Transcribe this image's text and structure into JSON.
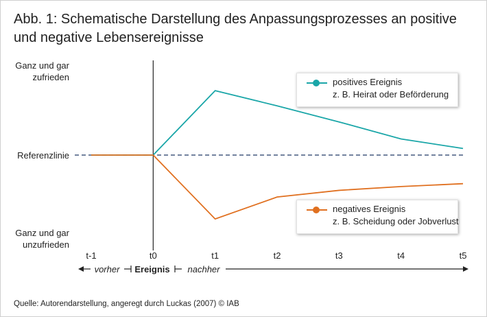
{
  "title": "Abb. 1: Schematische Darstellung des Anpassungsprozesses an positive und negative Lebensereignisse",
  "source": "Quelle: Autorendarstellung, angeregt durch Luckas (2007)  © IAB",
  "colors": {
    "positive": "#1aa6a8",
    "negative": "#e07020",
    "axis": "#222222",
    "reference": "#1f3864"
  },
  "chart_data": {
    "type": "line",
    "x": [
      "t-1",
      "t0",
      "t1",
      "t2",
      "t3",
      "t4",
      "t5"
    ],
    "ylim": [
      -1,
      1
    ],
    "y_labels": {
      "top_line1": "Ganz und gar",
      "top_line2": "zufrieden",
      "reference": "Referenzlinie",
      "bottom_line1": "Ganz und gar",
      "bottom_line2": "unzufrieden"
    },
    "series": [
      {
        "name": "positives Ereignis",
        "description": "z. B. Heirat oder Beförderung",
        "values": [
          0,
          0,
          0.68,
          0.52,
          0.35,
          0.17,
          0.07
        ]
      },
      {
        "name": "negatives Ereignis",
        "description": "z. B. Scheidung oder Jobverlust",
        "values": [
          0,
          0,
          -0.67,
          -0.44,
          -0.37,
          -0.33,
          -0.3
        ]
      }
    ],
    "timeline": {
      "before": "vorher",
      "event": "Ereignis",
      "after": "nachher"
    }
  }
}
